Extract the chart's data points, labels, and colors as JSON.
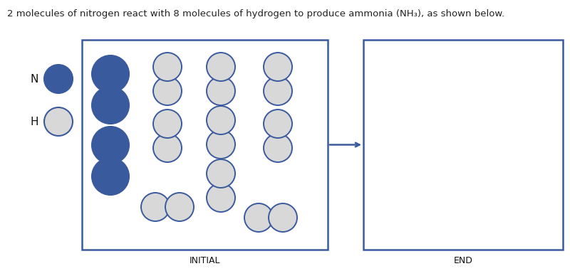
{
  "title": "2 molecules of nitrogen react with 8 molecules of hydrogen to produce ammonia (NH₃), as shown below.",
  "box_color": "#3a5a9e",
  "n_color": "#3a5a9e",
  "h_color": "#d8d8d8",
  "h_edge_color": "#3a5a9e",
  "n_edge_color": "#3a5a9e",
  "bg_color": "#ffffff",
  "label_initial": "INITIAL",
  "label_end": "END",
  "legend_n_label": "N",
  "legend_h_label": "H"
}
